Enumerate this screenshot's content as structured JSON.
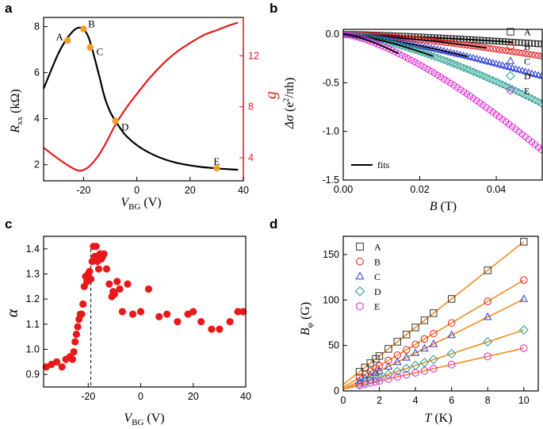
{
  "chart_data": [
    {
      "panel": "a",
      "type": "line",
      "xlabel": "V_BG (V)",
      "ylabel": "R_xx (kΩ)",
      "y2label": "g",
      "xlim": [
        -35,
        40
      ],
      "ylim": [
        1.3,
        8.4
      ],
      "y2lim": [
        2.2,
        15.0
      ],
      "xticks": [
        -20,
        0,
        20,
        40
      ],
      "yticks": [
        2,
        4,
        6,
        8
      ],
      "y2ticks": [
        4,
        8,
        12
      ],
      "series": [
        {
          "name": "R_xx",
          "axis": "left",
          "color": "#000000",
          "x": [
            -35,
            -30,
            -27,
            -24,
            -22,
            -20,
            -18,
            -16,
            -14,
            -12,
            -10,
            -8,
            -6,
            -4,
            0,
            5,
            10,
            15,
            20,
            25,
            30,
            35,
            38
          ],
          "y": [
            5.3,
            6.7,
            7.35,
            7.8,
            7.95,
            7.9,
            7.5,
            6.7,
            5.8,
            4.9,
            4.3,
            3.9,
            3.55,
            3.25,
            2.85,
            2.5,
            2.25,
            2.08,
            1.97,
            1.89,
            1.84,
            1.8,
            1.78
          ]
        },
        {
          "name": "g",
          "axis": "right",
          "color": "#e8191b",
          "x": [
            -35,
            -30,
            -25,
            -22,
            -20,
            -18,
            -15,
            -12,
            -8,
            -4,
            0,
            5,
            10,
            15,
            20,
            25,
            30,
            35,
            38
          ],
          "y": [
            4.8,
            4.0,
            3.3,
            3.0,
            3.05,
            3.3,
            4.0,
            5.0,
            6.6,
            7.9,
            9.0,
            10.3,
            11.4,
            12.3,
            13.0,
            13.6,
            14.0,
            14.4,
            14.6
          ]
        }
      ],
      "points": [
        {
          "label": "A",
          "x": -26,
          "y": 7.4
        },
        {
          "label": "B",
          "x": -20,
          "y": 7.9
        },
        {
          "label": "C",
          "x": -17.5,
          "y": 7.1
        },
        {
          "label": "D",
          "x": -8,
          "y": 3.9
        },
        {
          "label": "E",
          "x": 30,
          "y": 1.85
        }
      ],
      "point_color": "#f39c2a"
    },
    {
      "panel": "b",
      "type": "scatter",
      "xlabel": "B (T)",
      "ylabel": "Δσ (e²/πh)",
      "xlim": [
        0,
        0.052
      ],
      "ylim": [
        -1.5,
        0.05
      ],
      "xticks": [
        0.0,
        0.02,
        0.04
      ],
      "yticks": [
        0.0,
        -0.5,
        -1.0,
        -1.5
      ],
      "legend_position": "top-right",
      "fit_label": "fits",
      "series": [
        {
          "name": "A",
          "marker": "square",
          "color": "#333333",
          "k": 5.5,
          "p": 1.35,
          "fit_to": 0.045
        },
        {
          "name": "B",
          "marker": "circle",
          "color": "#e8191b",
          "k": 16.5,
          "p": 1.45,
          "fit_to": 0.038
        },
        {
          "name": "C",
          "marker": "triangle",
          "color": "#2b3ad6",
          "k": 23.5,
          "p": 1.35,
          "fit_to": 0.033
        },
        {
          "name": "D",
          "marker": "diamond",
          "color": "#1a9a8a",
          "k": 52.0,
          "p": 1.45,
          "fit_to": 0.024
        },
        {
          "name": "E",
          "marker": "hexagon",
          "color": "#e326d8",
          "k": 75.0,
          "p": 1.4,
          "fit_to": 0.015
        }
      ]
    },
    {
      "panel": "c",
      "type": "scatter",
      "xlabel": "V_BG (V)",
      "ylabel": "α",
      "xlim": [
        -37,
        40
      ],
      "ylim": [
        0.85,
        1.45
      ],
      "xticks": [
        -20,
        0,
        20,
        40
      ],
      "yticks": [
        0.9,
        1.0,
        1.1,
        1.2,
        1.3,
        1.4
      ],
      "vline_x": -19,
      "color": "#e8191b",
      "x": [
        -36,
        -34,
        -32,
        -30,
        -28.5,
        -27,
        -26,
        -25.5,
        -25,
        -24.5,
        -24,
        -23.5,
        -23,
        -22.5,
        -22,
        -21.5,
        -21,
        -20.5,
        -20,
        -19.5,
        -19,
        -18.5,
        -18,
        -17.5,
        -17,
        -16.5,
        -16,
        -15.5,
        -15,
        -14.5,
        -14,
        -13,
        -12,
        -11,
        -10.5,
        -10,
        -9,
        -8,
        -7,
        -5,
        -3,
        0,
        3,
        7,
        10,
        14,
        18,
        20,
        23,
        27,
        30,
        34,
        37,
        39
      ],
      "y": [
        0.93,
        0.94,
        0.95,
        0.93,
        0.96,
        0.97,
        0.96,
        0.99,
        1.03,
        1.06,
        1.09,
        1.12,
        1.14,
        1.14,
        1.18,
        1.25,
        1.29,
        1.27,
        1.3,
        1.31,
        1.28,
        1.35,
        1.41,
        1.37,
        1.41,
        1.35,
        1.32,
        1.38,
        1.36,
        1.37,
        1.38,
        1.32,
        1.26,
        1.21,
        1.23,
        1.22,
        1.27,
        1.24,
        1.15,
        1.26,
        1.14,
        1.15,
        1.24,
        1.13,
        1.14,
        1.11,
        1.14,
        1.15,
        1.11,
        1.08,
        1.08,
        1.11,
        1.15,
        1.15
      ]
    },
    {
      "panel": "d",
      "type": "scatter",
      "xlabel": "T (K)",
      "ylabel": "B_φ (G)",
      "xlim": [
        0,
        10.8
      ],
      "ylim": [
        0,
        170
      ],
      "xticks": [
        0,
        2,
        4,
        6,
        8,
        10
      ],
      "yticks": [
        0,
        50,
        100,
        150
      ],
      "fit_color": "#f28a1f",
      "legend_position": "top-left",
      "x": [
        0.9,
        1.2,
        1.5,
        1.8,
        2,
        2.5,
        3,
        3.5,
        4,
        4.5,
        5,
        6,
        8,
        10
      ],
      "series": [
        {
          "name": "A",
          "marker": "square",
          "color": "#333333",
          "slope": 15.7,
          "intercept": 7
        },
        {
          "name": "B",
          "marker": "circle",
          "color": "#e8191b",
          "slope": 11.8,
          "intercept": 4
        },
        {
          "name": "C",
          "marker": "triangle",
          "color": "#2b3ad6",
          "slope": 9.9,
          "intercept": 2
        },
        {
          "name": "D",
          "marker": "diamond",
          "color": "#1a9a8a",
          "slope": 6.5,
          "intercept": 2
        },
        {
          "name": "E",
          "marker": "hexagon",
          "color": "#e326d8",
          "slope": 4.5,
          "intercept": 2
        }
      ]
    }
  ]
}
